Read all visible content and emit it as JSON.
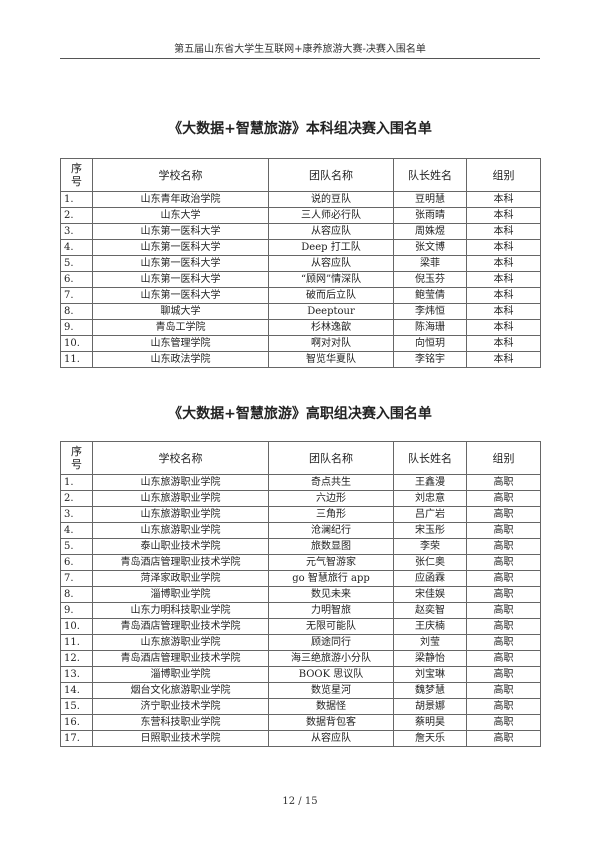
{
  "header": "第五届山东省大学生互联网+康养旅游大赛-决赛入围名单",
  "columns": [
    "序号",
    "学校名称",
    "团队名称",
    "队长姓名",
    "组别"
  ],
  "tables": [
    {
      "title": "《大数据+智慧旅游》本科组决赛入围名单",
      "rows": [
        [
          "1.",
          "山东青年政治学院",
          "说的豆队",
          "豆明慧",
          "本科"
        ],
        [
          "2.",
          "山东大学",
          "三人师必行队",
          "张雨晴",
          "本科"
        ],
        [
          "3.",
          "山东第一医科大学",
          "从容应队",
          "周姝煜",
          "本科"
        ],
        [
          "4.",
          "山东第一医科大学",
          "Deep 打工队",
          "张文博",
          "本科"
        ],
        [
          "5.",
          "山东第一医科大学",
          "从容应队",
          "梁菲",
          "本科"
        ],
        [
          "6.",
          "山东第一医科大学",
          "“顾网”情深队",
          "倪玉芬",
          "本科"
        ],
        [
          "7.",
          "山东第一医科大学",
          "破而后立队",
          "鲍莹倩",
          "本科"
        ],
        [
          "8.",
          "聊城大学",
          "Deeptour",
          "李炜恒",
          "本科"
        ],
        [
          "9.",
          "青岛工学院",
          "杉林逸歆",
          "陈海珊",
          "本科"
        ],
        [
          "10.",
          "山东管理学院",
          "啊对对队",
          "向恒玥",
          "本科"
        ],
        [
          "11.",
          "山东政法学院",
          "智览华夏队",
          "李铭宇",
          "本科"
        ]
      ]
    },
    {
      "title": "《大数据+智慧旅游》高职组决赛入围名单",
      "rows": [
        [
          "1.",
          "山东旅游职业学院",
          "奇点共生",
          "王鑫漫",
          "高职"
        ],
        [
          "2.",
          "山东旅游职业学院",
          "六边形",
          "刘忠意",
          "高职"
        ],
        [
          "3.",
          "山东旅游职业学院",
          "三角形",
          "吕广岩",
          "高职"
        ],
        [
          "4.",
          "山东旅游职业学院",
          "沧澜纪行",
          "宋玉彤",
          "高职"
        ],
        [
          "5.",
          "泰山职业技术学院",
          "旅数显图",
          "李荣",
          "高职"
        ],
        [
          "6.",
          "青岛酒店管理职业技术学院",
          "元气智游家",
          "张仁奥",
          "高职"
        ],
        [
          "7.",
          "菏泽家政职业学院",
          "go 智慧旅行 app",
          "应函霖",
          "高职"
        ],
        [
          "8.",
          "淄博职业学院",
          "数见未来",
          "宋佳娱",
          "高职"
        ],
        [
          "9.",
          "山东力明科技职业学院",
          "力明智旅",
          "赵奕智",
          "高职"
        ],
        [
          "10.",
          "青岛酒店管理职业技术学院",
          "无限可能队",
          "王庆楠",
          "高职"
        ],
        [
          "11.",
          "山东旅游职业学院",
          "顾途同行",
          "刘莹",
          "高职"
        ],
        [
          "12.",
          "青岛酒店管理职业技术学院",
          "海三绝旅游小分队",
          "梁静怡",
          "高职"
        ],
        [
          "13.",
          "淄博职业学院",
          "BOOK 思议队",
          "刘宝琳",
          "高职"
        ],
        [
          "14.",
          "烟台文化旅游职业学院",
          "数览星河",
          "魏梦慧",
          "高职"
        ],
        [
          "15.",
          "济宁职业技术学院",
          "数据怪",
          "胡景娜",
          "高职"
        ],
        [
          "16.",
          "东营科技职业学院",
          "数据背包客",
          "蔡明昊",
          "高职"
        ],
        [
          "17.",
          "日照职业技术学院",
          "从容应队",
          "詹天乐",
          "高职"
        ]
      ]
    }
  ],
  "page_number": "12 / 15"
}
